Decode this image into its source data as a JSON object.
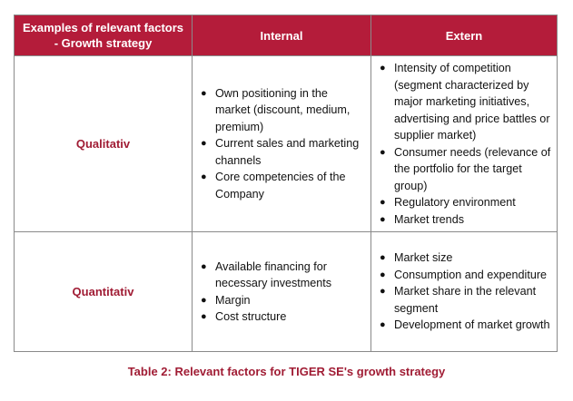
{
  "table": {
    "header": {
      "col0": "Examples of relevant factors - Growth strategy",
      "col1": "Internal",
      "col2": "Extern"
    },
    "rows": [
      {
        "label": "Qualitativ",
        "internal": [
          "Own positioning in the market (discount, medium, premium)",
          "Current sales and marketing channels",
          "Core competencies of the Company"
        ],
        "extern": [
          "Intensity of competition (segment characterized by major marketing initiatives, advertising and price battles or supplier market)",
          "Consumer needs (relevance of the portfolio for the target group)",
          "Regulatory environment",
          "Market trends"
        ]
      },
      {
        "label": "Quantitativ",
        "internal": [
          "Available financing for necessary investments",
          "Margin",
          "Cost structure"
        ],
        "extern": [
          "Market size",
          "Consumption and expenditure",
          "Market share in the relevant segment",
          "Development of market growth"
        ]
      }
    ]
  },
  "caption": "Table 2: Relevant factors for TIGER SE's growth strategy",
  "colors": {
    "header_bg": "#b41c3a",
    "accent_text": "#a01c34"
  },
  "bullet_icon": "bullet-dot"
}
